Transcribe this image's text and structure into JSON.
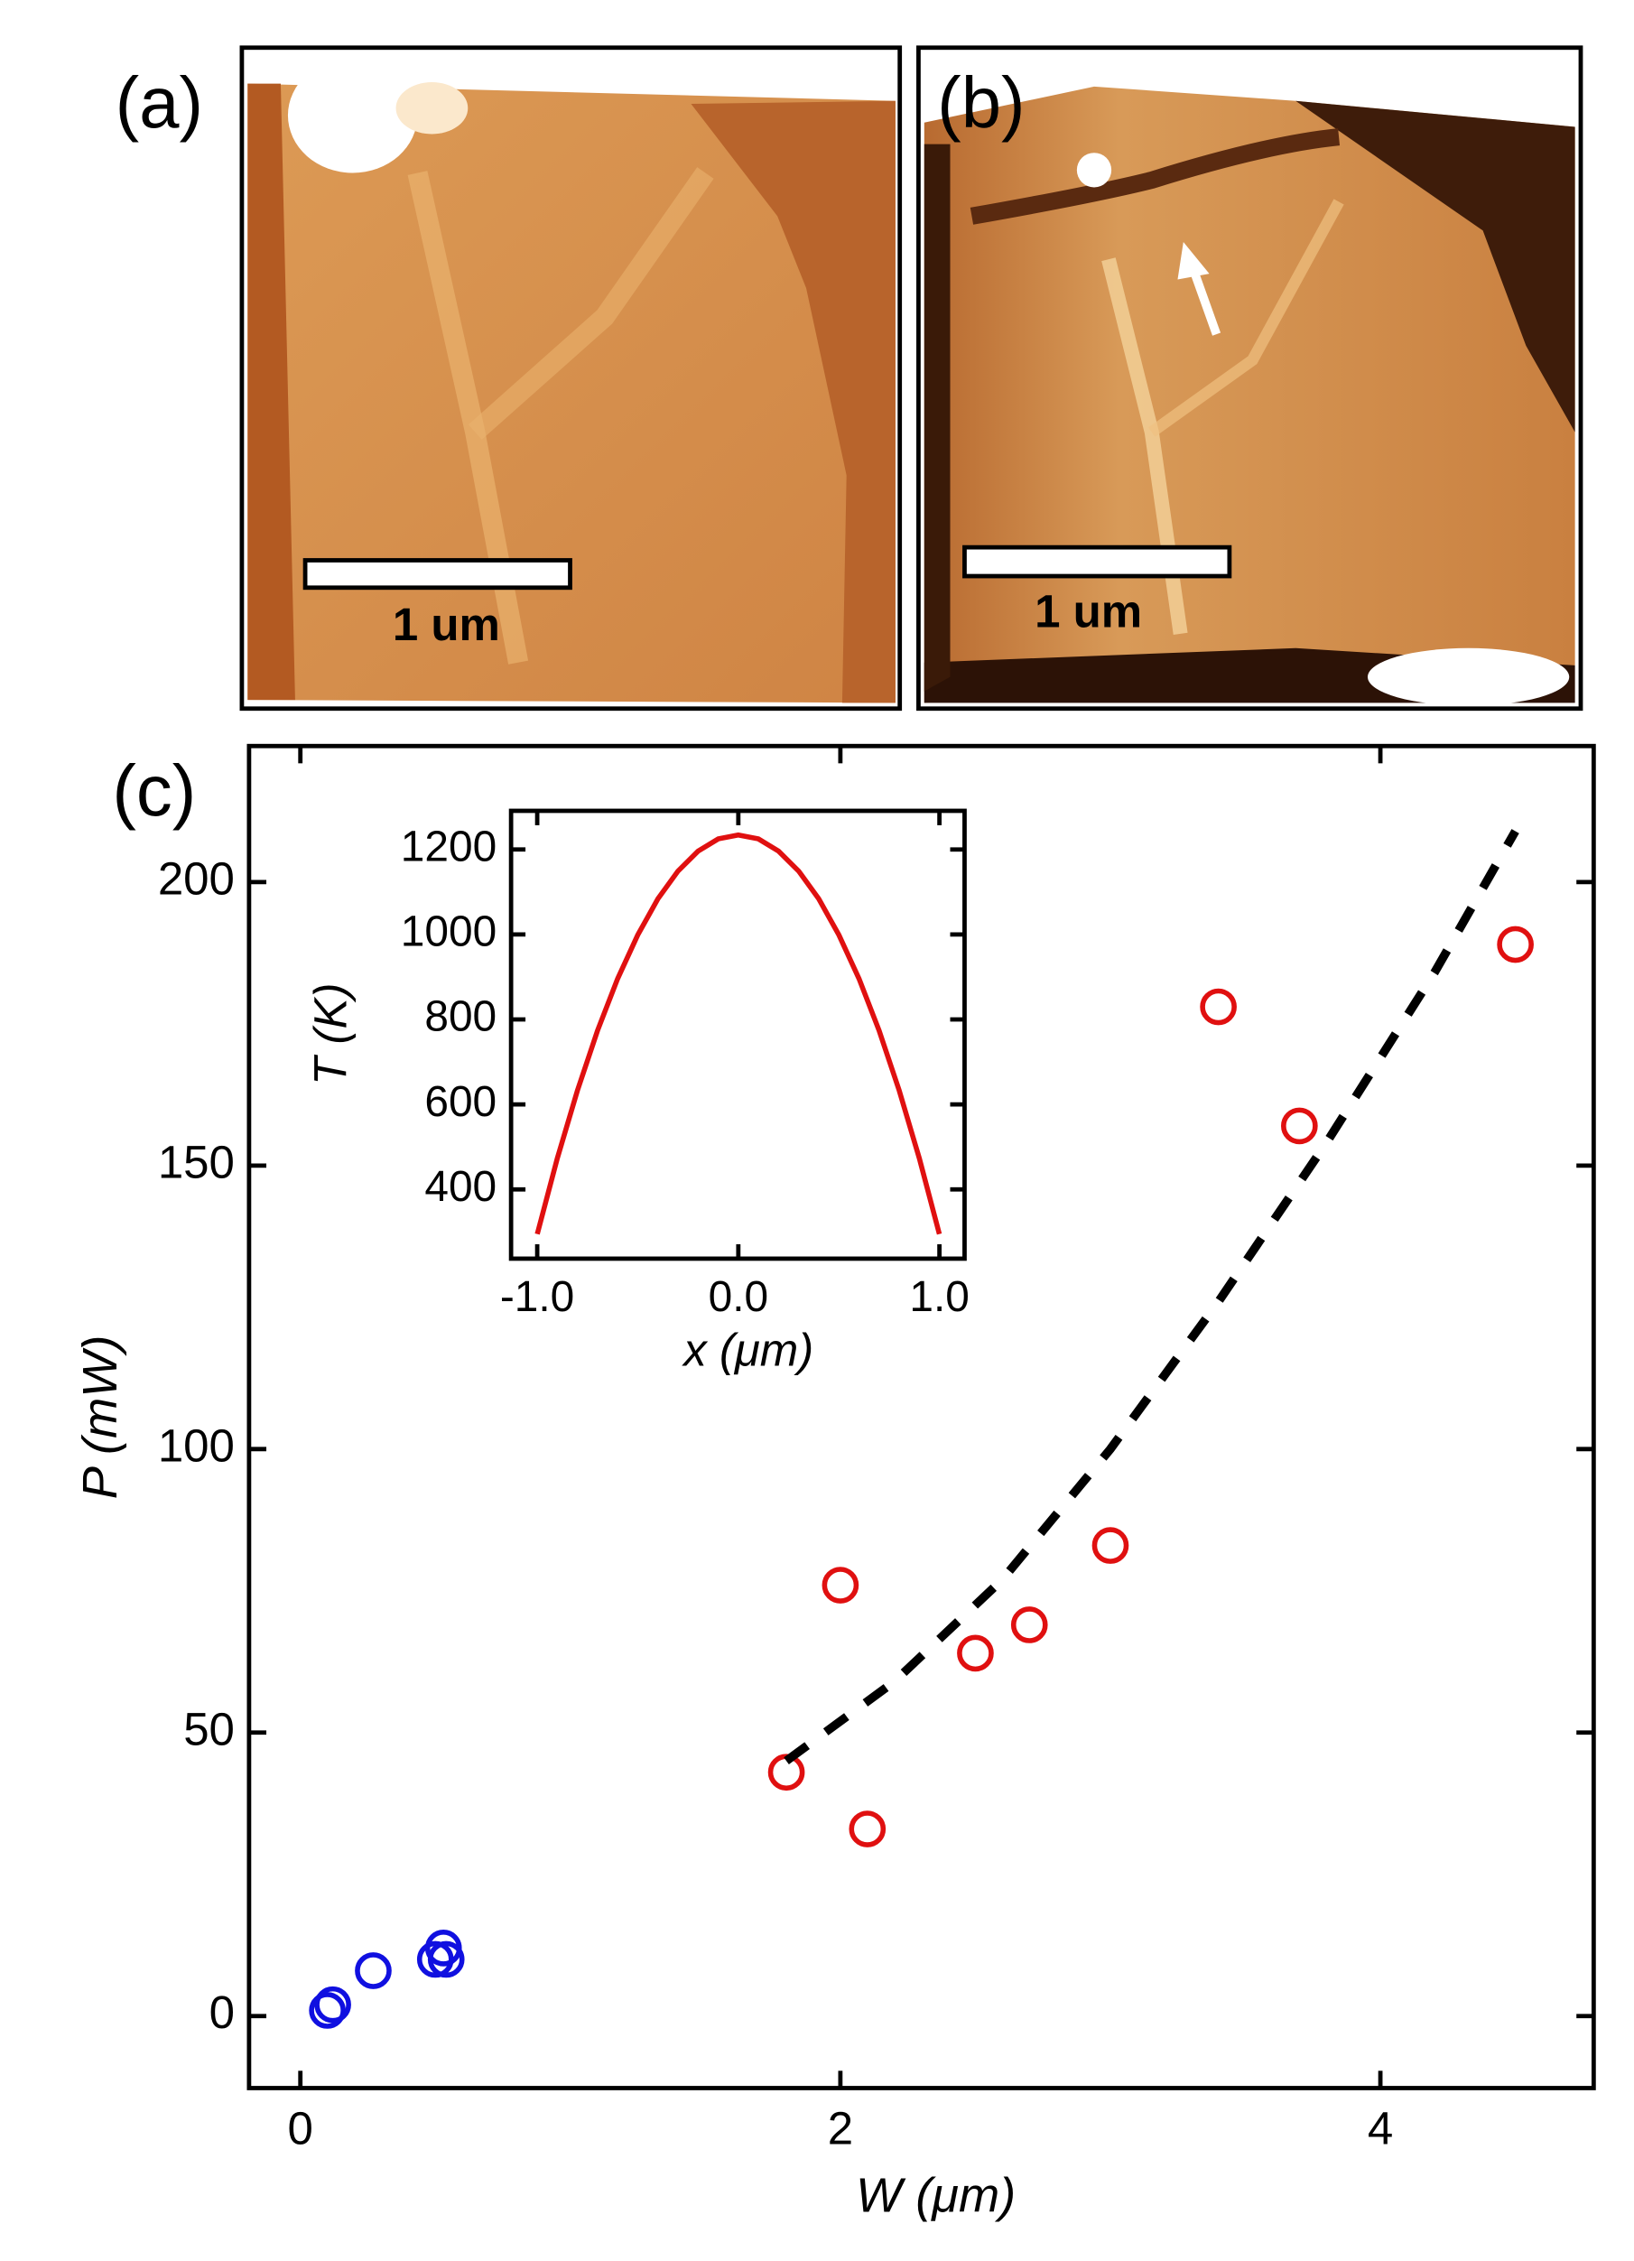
{
  "images": [
    {
      "label": "(a)",
      "scale_bar": "1 um"
    },
    {
      "label": "(b)",
      "scale_bar": "1 um"
    }
  ],
  "chart_data": [
    {
      "type": "scatter",
      "panel_label": "(c)",
      "x_label": "W (μm)",
      "y_label": "P (mW)",
      "xlim": [
        -0.19,
        4.79
      ],
      "ylim": [
        -12.7,
        224
      ],
      "xticks": [
        0,
        2,
        4
      ],
      "yticks": [
        0,
        50,
        100,
        150,
        200
      ],
      "series": [
        {
          "color": "#e01010",
          "x": [
            1.8,
            2.0,
            2.1,
            2.5,
            2.7,
            3.0,
            3.4,
            3.7,
            4.5
          ],
          "values": [
            43,
            76,
            33,
            64,
            69,
            83,
            178,
            157,
            189
          ]
        },
        {
          "color": "#1010e0",
          "x": [
            0.1,
            0.12,
            0.27,
            0.5,
            0.53,
            0.54
          ],
          "values": [
            1,
            2,
            8,
            10,
            12,
            10
          ]
        },
        {
          "color": "#000000",
          "style": "dashed",
          "x": [
            1.8,
            2.2,
            2.6,
            3.0,
            3.4,
            3.8,
            4.2,
            4.5
          ],
          "values": [
            45,
            59,
            77,
            100,
            126,
            154,
            184,
            209
          ]
        }
      ]
    },
    {
      "type": "line",
      "x_label": "x (μm)",
      "y_label": "T (K)",
      "xlim": [
        -1.13,
        1.125
      ],
      "ylim": [
        237,
        1291
      ],
      "xticks": [
        {
          "value": -1,
          "label": "-1.0"
        },
        {
          "value": 0,
          "label": "0.0"
        },
        {
          "value": 1,
          "label": "1.0"
        }
      ],
      "yticks": [
        400,
        600,
        800,
        1000,
        1200
      ],
      "series": [
        {
          "color": "#e01010",
          "x": [
            -1,
            -0.9,
            -0.8,
            -0.7,
            -0.6,
            -0.5,
            -0.4,
            -0.3,
            -0.2,
            -0.1,
            0,
            0.1,
            0.2,
            0.3,
            0.4,
            0.5,
            0.6,
            0.7,
            0.8,
            0.9,
            1
          ],
          "values": [
            295,
            473,
            633,
            774,
            896,
            999,
            1084,
            1149,
            1196,
            1225,
            1234,
            1225,
            1196,
            1149,
            1084,
            999,
            896,
            774,
            633,
            473,
            295
          ]
        }
      ]
    }
  ]
}
